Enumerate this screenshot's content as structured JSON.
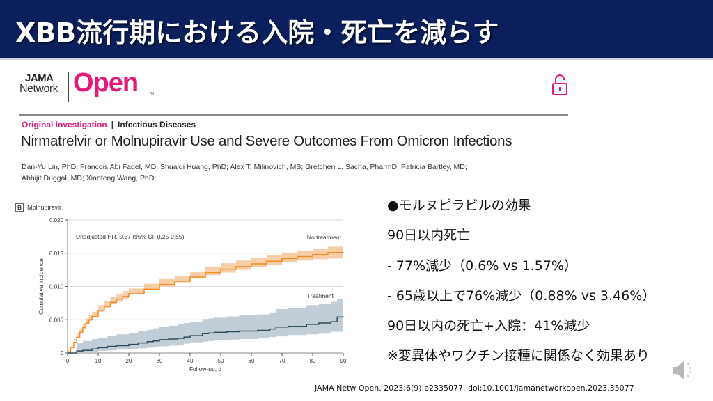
{
  "slide": {
    "title": "XBB流行期における入院・死亡を減らす",
    "colors": {
      "title_bg": "#0a1f5c",
      "title_text": "#ffffff",
      "brand_pink": "#e5197a",
      "no_treatment": "#f28c28",
      "no_treatment_band": "#f5c79a",
      "treatment": "#2f4a5a",
      "treatment_band": "#b7c6d0"
    }
  },
  "article": {
    "logo": {
      "top": "JAMA",
      "bottom": "Network",
      "brand": "Open",
      "tm": "TM"
    },
    "lock_icon": "open-lock-icon",
    "category_primary": "Original Investigation",
    "category_separator": "|",
    "category_secondary": "Infectious Diseases",
    "title": "Nirmatrelvir or Molnupiravir Use and Severe Outcomes From Omicron Infections",
    "authors_line1": "Dan-Yu Lin, PhD; Francois Abi Fadel, MD; Shuaiqi Huang, PhD; Alex T. Milinovich, MS; Gretchen L. Sacha, PharmD; Patricia Bartley, MD;",
    "authors_line2": "Abhijit Duggal, MD; Xiaofeng Wang, PhD"
  },
  "panel": {
    "letter": "B",
    "name": "Molnupiravir"
  },
  "chart_data": {
    "type": "line",
    "title": "Molnupiravir",
    "annotation": "Unadjusted HR, 0.37 (95% CI, 0.25-0.55)",
    "xlabel": "Follow-up, d",
    "ylabel": "Cumulative incidence",
    "xlim": [
      0,
      90
    ],
    "ylim": [
      0,
      0.02
    ],
    "x_ticks": [
      "0",
      "10",
      "20",
      "30",
      "40",
      "50",
      "60",
      "70",
      "80",
      "90"
    ],
    "y_ticks": [
      "0",
      "0.005",
      "0.010",
      "0.015",
      "0.020"
    ],
    "grid": true,
    "series": [
      {
        "name": "No treatment",
        "x": [
          0,
          1,
          2,
          3,
          4,
          5,
          6,
          7,
          8,
          10,
          12,
          14,
          16,
          18,
          20,
          25,
          30,
          35,
          40,
          45,
          50,
          55,
          60,
          65,
          70,
          75,
          80,
          85,
          90
        ],
        "y": [
          0,
          0.0008,
          0.0016,
          0.0024,
          0.0031,
          0.0038,
          0.0045,
          0.005,
          0.0055,
          0.0064,
          0.007,
          0.0076,
          0.0081,
          0.0085,
          0.0089,
          0.0096,
          0.0103,
          0.0108,
          0.0114,
          0.0121,
          0.0126,
          0.013,
          0.0134,
          0.0138,
          0.0142,
          0.0145,
          0.0148,
          0.0151,
          0.0152
        ],
        "ci_low": [
          0,
          0.0004,
          0.0011,
          0.0018,
          0.0025,
          0.0031,
          0.0038,
          0.0043,
          0.0048,
          0.0056,
          0.0062,
          0.0068,
          0.0073,
          0.0077,
          0.0081,
          0.0088,
          0.0095,
          0.01,
          0.0106,
          0.0112,
          0.0117,
          0.0121,
          0.0125,
          0.0129,
          0.0133,
          0.0136,
          0.0139,
          0.0141,
          0.0142
        ],
        "ci_high": [
          0,
          0.0012,
          0.0021,
          0.003,
          0.0037,
          0.0045,
          0.0052,
          0.0057,
          0.0062,
          0.0072,
          0.0078,
          0.0084,
          0.0089,
          0.0093,
          0.0097,
          0.0104,
          0.0111,
          0.0116,
          0.0122,
          0.013,
          0.0135,
          0.0139,
          0.0143,
          0.0147,
          0.0151,
          0.0154,
          0.0157,
          0.016,
          0.0162
        ]
      },
      {
        "name": "Treatment",
        "x": [
          0,
          3,
          5,
          8,
          10,
          13,
          16,
          20,
          23,
          26,
          28,
          30,
          33,
          36,
          38,
          40,
          44,
          46,
          48,
          52,
          56,
          62,
          66,
          68,
          72,
          78,
          82,
          86,
          88,
          90
        ],
        "y": [
          0,
          0.0003,
          0.0004,
          0.0006,
          0.0008,
          0.001,
          0.0011,
          0.0013,
          0.0015,
          0.0017,
          0.0018,
          0.002,
          0.0021,
          0.0022,
          0.0024,
          0.0026,
          0.0029,
          0.003,
          0.0031,
          0.0032,
          0.0033,
          0.0034,
          0.0036,
          0.0039,
          0.004,
          0.0043,
          0.0045,
          0.0047,
          0.0054,
          0.0055
        ],
        "ci_low": [
          0,
          0,
          0,
          0.0001,
          0.0002,
          0.0003,
          0.0004,
          0.0005,
          0.0006,
          0.0007,
          0.0008,
          0.0009,
          0.001,
          0.0011,
          0.0012,
          0.0014,
          0.0016,
          0.0017,
          0.0018,
          0.0019,
          0.002,
          0.0021,
          0.0022,
          0.0024,
          0.0025,
          0.0027,
          0.0028,
          0.0029,
          0.0032,
          0.0032
        ],
        "ci_high": [
          0,
          0.0015,
          0.0018,
          0.0021,
          0.0023,
          0.0026,
          0.0028,
          0.003,
          0.0033,
          0.0035,
          0.0037,
          0.0039,
          0.0041,
          0.0043,
          0.0045,
          0.0047,
          0.0051,
          0.0052,
          0.0053,
          0.0055,
          0.0057,
          0.0058,
          0.0061,
          0.0066,
          0.0067,
          0.0072,
          0.0074,
          0.0077,
          0.0081,
          0.0082
        ]
      }
    ],
    "series_labels": [
      "No treatment",
      "Treatment"
    ]
  },
  "summary": {
    "items": [
      "●モルヌピラビルの効果",
      "90日以内死亡",
      " - 77%減少（0.6%  vs 1.57%）",
      " - 65歳以上で76%減少（0.88%  vs 3.46%）",
      "90日以内の死亡+入院：41%減少",
      "※変異体やワクチン接種に関係なく効果あり"
    ]
  },
  "citation": "JAMA Netw Open. 2023;6(9):e2335077.  doi:10.1001/jamanetworkopen.2023.35077",
  "audio_icon": "speaker-icon"
}
